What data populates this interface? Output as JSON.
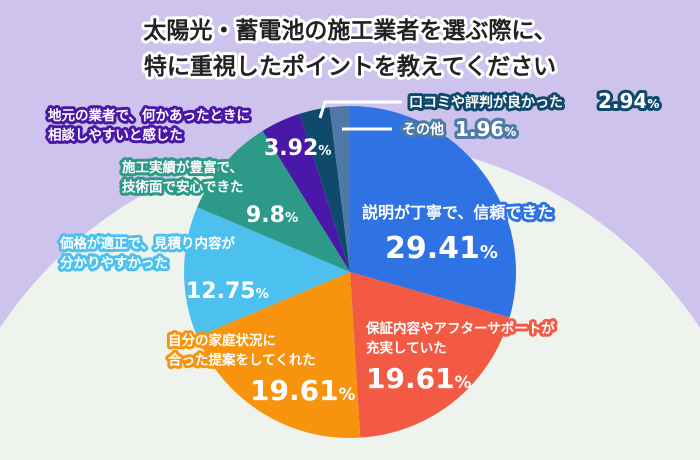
{
  "chart_data": {
    "type": "pie",
    "title_lines": [
      "太陽光・蓄電池の施工業者を選ぶ際に、",
      "特に重視したポイントを教えてください"
    ],
    "unit": "%",
    "start": "12 o'clock, clockwise",
    "slices": [
      {
        "label_lines": [
          "説明が丁寧で、信頼できた"
        ],
        "value": 29.41,
        "value_text": "29.41",
        "color": "#2f72e3"
      },
      {
        "label_lines": [
          "保証内容やアフターサポートが",
          "充実していた"
        ],
        "value": 19.61,
        "value_text": "19.61",
        "color": "#f35a44"
      },
      {
        "label_lines": [
          "自分の家庭状況に",
          "合った提案をしてくれた"
        ],
        "value": 19.61,
        "value_text": "19.61",
        "color": "#f7930c"
      },
      {
        "label_lines": [
          "価格が適正で、見積り内容が",
          "分かりやすかった"
        ],
        "value": 12.75,
        "value_text": "12.75",
        "color": "#4cc0ef"
      },
      {
        "label_lines": [
          "施工実績が豊富で、",
          "技術面で安心できた"
        ],
        "value": 9.8,
        "value_text": "9.8",
        "color": "#2d9a89"
      },
      {
        "label_lines": [
          "地元の業者で、何かあったときに",
          "相談しやすいと感じた"
        ],
        "value": 3.92,
        "value_text": "3.92",
        "color": "#4a18a8"
      },
      {
        "label_lines": [
          "口コミや評判が良かった"
        ],
        "value": 2.94,
        "value_text": "2.94",
        "color": "#0f4a6d"
      },
      {
        "label_lines": [
          "その他"
        ],
        "value": 1.96,
        "value_text": "1.96",
        "color": "#4f79a6"
      }
    ]
  }
}
